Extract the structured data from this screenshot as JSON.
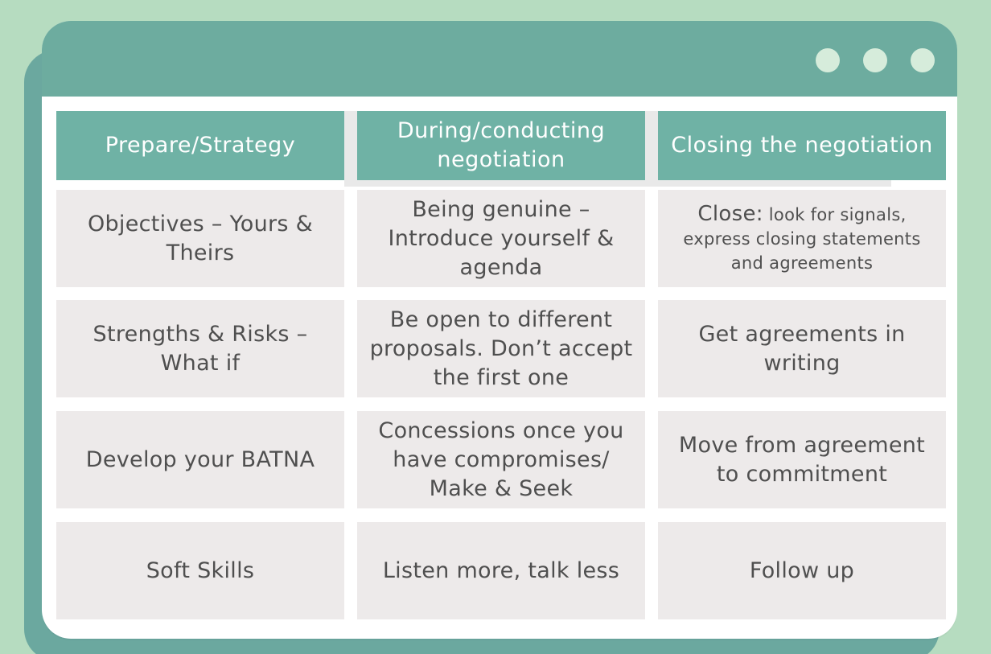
{
  "colors": {
    "background": "#b6dcc0",
    "window_bar": "#6dac9f",
    "header_cell": "#6fb2a5",
    "body_cell": "#edeaea",
    "dot": "#d6ecdb"
  },
  "window": {
    "dots": [
      "dot",
      "dot",
      "dot"
    ]
  },
  "table": {
    "headers": [
      "Prepare/Strategy",
      "During/conducting negotiation",
      "Closing the negotiation"
    ],
    "rows": [
      [
        "Objectives – Yours & Theirs",
        "Being genuine – Introduce yourself & agenda",
        {
          "lead": "Close:",
          "rest": "look for signals, express closing statements and agreements"
        }
      ],
      [
        "Strengths & Risks – What if",
        "Be open to different proposals. Don’t accept the first one",
        "Get agreements in writing"
      ],
      [
        "Develop your BATNA",
        "Concessions once you have compromises/ Make & Seek",
        "Move from agreement to commitment"
      ],
      [
        "Soft Skills",
        "Listen more, talk less",
        "Follow up"
      ]
    ]
  }
}
